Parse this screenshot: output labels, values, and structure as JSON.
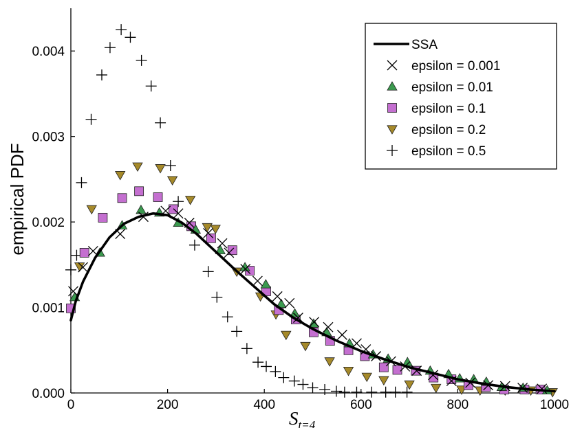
{
  "chart_data": {
    "type": "scatter",
    "title": "",
    "xlabel": "S",
    "xlabel_subscript": "t=4",
    "ylabel": "empirical PDF",
    "xlim": [
      0,
      1000
    ],
    "ylim": [
      0,
      0.0045
    ],
    "xticks": [
      0,
      200,
      400,
      600,
      800,
      1000
    ],
    "xtick_labels": [
      "0",
      "200",
      "400",
      "600",
      "800",
      "1000"
    ],
    "yticks": [
      0,
      0.001,
      0.002,
      0.003,
      0.004
    ],
    "ytick_labels": [
      "0.000",
      "0.001",
      "0.002",
      "0.003",
      "0.004"
    ],
    "grid": false,
    "legend_position": "top-right",
    "series": [
      {
        "name": "SSA",
        "marker": "line",
        "color": "#000000",
        "points": [
          [
            0,
            0.00085
          ],
          [
            10,
            0.00107
          ],
          [
            25,
            0.0013
          ],
          [
            50,
            0.00158
          ],
          [
            80,
            0.00182
          ],
          [
            110,
            0.00198
          ],
          [
            140,
            0.00206
          ],
          [
            170,
            0.0021
          ],
          [
            200,
            0.00208
          ],
          [
            230,
            0.00199
          ],
          [
            260,
            0.00186
          ],
          [
            300,
            0.00165
          ],
          [
            340,
            0.00144
          ],
          [
            380,
            0.00124
          ],
          [
            420,
            0.00104
          ],
          [
            460,
            0.00088
          ],
          [
            500,
            0.00075
          ],
          [
            550,
            0.00061
          ],
          [
            600,
            0.00049
          ],
          [
            650,
            0.00039
          ],
          [
            700,
            0.0003
          ],
          [
            750,
            0.00023
          ],
          [
            800,
            0.00016
          ],
          [
            850,
            0.00011
          ],
          [
            900,
            7e-05
          ],
          [
            950,
            4e-05
          ],
          [
            1000,
            2e-05
          ]
        ]
      },
      {
        "name": "epsilon = 0.001",
        "marker": "x",
        "color": "#000000",
        "points": [
          [
            5,
            0.00119
          ],
          [
            25,
            0.00147
          ],
          [
            46,
            0.00166
          ],
          [
            102,
            0.00186
          ],
          [
            150,
            0.00206
          ],
          [
            196,
            0.00213
          ],
          [
            222,
            0.0021
          ],
          [
            245,
            0.00199
          ],
          [
            284,
            0.00187
          ],
          [
            313,
            0.00175
          ],
          [
            327,
            0.00164
          ],
          [
            361,
            0.00145
          ],
          [
            386,
            0.00131
          ],
          [
            427,
            0.00113
          ],
          [
            452,
            0.00105
          ],
          [
            470,
            0.00088
          ],
          [
            503,
            0.00083
          ],
          [
            532,
            0.00077
          ],
          [
            561,
            0.00068
          ],
          [
            591,
            0.00058
          ],
          [
            610,
            0.00051
          ],
          [
            631,
            0.00043
          ],
          [
            662,
            0.00037
          ],
          [
            691,
            0.00031
          ],
          [
            715,
            0.00026
          ],
          [
            749,
            0.00021
          ],
          [
            787,
            0.00014
          ],
          [
            826,
            0.00012
          ],
          [
            863,
            9e-05
          ],
          [
            898,
            8e-05
          ],
          [
            934,
            6e-05
          ],
          [
            974,
            5e-05
          ]
        ]
      },
      {
        "name": "epsilon = 0.01",
        "marker": "triangle-up",
        "color": "#3b9a4f",
        "points": [
          [
            8,
            0.00112
          ],
          [
            60,
            0.00164
          ],
          [
            106,
            0.00196
          ],
          [
            145,
            0.00214
          ],
          [
            183,
            0.00211
          ],
          [
            222,
            0.00199
          ],
          [
            258,
            0.00191
          ],
          [
            309,
            0.00167
          ],
          [
            360,
            0.00147
          ],
          [
            403,
            0.00127
          ],
          [
            435,
            0.00104
          ],
          [
            463,
            0.00093
          ],
          [
            502,
            0.00081
          ],
          [
            529,
            0.00071
          ],
          [
            576,
            0.00058
          ],
          [
            625,
            0.00045
          ],
          [
            656,
            0.0004
          ],
          [
            696,
            0.00036
          ],
          [
            743,
            0.00026
          ],
          [
            781,
            0.00022
          ],
          [
            804,
            0.00017
          ],
          [
            833,
            0.00016
          ],
          [
            859,
            0.00013
          ],
          [
            891,
            7e-05
          ],
          [
            935,
            6e-05
          ],
          [
            985,
            3e-05
          ]
        ]
      },
      {
        "name": "epsilon = 0.1",
        "marker": "square",
        "color": "#c46fd0",
        "points": [
          [
            0,
            0.00099
          ],
          [
            28,
            0.00164
          ],
          [
            66,
            0.00205
          ],
          [
            106,
            0.00228
          ],
          [
            141,
            0.00236
          ],
          [
            180,
            0.00229
          ],
          [
            212,
            0.00215
          ],
          [
            249,
            0.00195
          ],
          [
            290,
            0.00181
          ],
          [
            334,
            0.00167
          ],
          [
            370,
            0.00143
          ],
          [
            404,
            0.00119
          ],
          [
            430,
            0.00097
          ],
          [
            465,
            0.00086
          ],
          [
            502,
            0.00071
          ],
          [
            536,
            0.00061
          ],
          [
            574,
            0.0005
          ],
          [
            608,
            0.00043
          ],
          [
            647,
            0.0003
          ],
          [
            675,
            0.00027
          ],
          [
            713,
            0.00026
          ],
          [
            750,
            0.00018
          ],
          [
            787,
            0.00016
          ],
          [
            822,
            9e-05
          ],
          [
            858,
            7e-05
          ],
          [
            896,
            4e-05
          ],
          [
            938,
            4e-05
          ],
          [
            971,
            4e-05
          ]
        ]
      },
      {
        "name": "epsilon = 0.2",
        "marker": "triangle-down",
        "color": "#a68a2a",
        "points": [
          [
            18,
            0.00148
          ],
          [
            43,
            0.00215
          ],
          [
            102,
            0.00255
          ],
          [
            138,
            0.00265
          ],
          [
            185,
            0.00263
          ],
          [
            210,
            0.00249
          ],
          [
            247,
            0.00226
          ],
          [
            282,
            0.00194
          ],
          [
            299,
            0.00192
          ],
          [
            343,
            0.00142
          ],
          [
            392,
            0.00113
          ],
          [
            424,
            0.00092
          ],
          [
            445,
            0.00068
          ],
          [
            485,
            0.00055
          ],
          [
            535,
            0.00037
          ],
          [
            574,
            0.00026
          ],
          [
            612,
            0.00019
          ],
          [
            647,
            0.00015
          ],
          [
            700,
            0.0001
          ],
          [
            755,
            6e-05
          ],
          [
            808,
            4e-05
          ],
          [
            846,
            3e-05
          ],
          [
            898,
            3e-05
          ],
          [
            951,
            3e-05
          ],
          [
            996,
            1e-05
          ]
        ]
      },
      {
        "name": "epsilon = 0.5",
        "marker": "plus",
        "color": "#000000",
        "points": [
          [
            0,
            0.00144
          ],
          [
            12,
            0.00161
          ],
          [
            22,
            0.00246
          ],
          [
            42,
            0.0032
          ],
          [
            64,
            0.00372
          ],
          [
            81,
            0.00404
          ],
          [
            104,
            0.00425
          ],
          [
            123,
            0.00416
          ],
          [
            146,
            0.00389
          ],
          [
            166,
            0.00359
          ],
          [
            185,
            0.00316
          ],
          [
            206,
            0.00266
          ],
          [
            222,
            0.00224
          ],
          [
            256,
            0.00173
          ],
          [
            284,
            0.00142
          ],
          [
            302,
            0.00112
          ],
          [
            324,
            0.00089
          ],
          [
            343,
            0.00072
          ],
          [
            364,
            0.00052
          ],
          [
            387,
            0.00036
          ],
          [
            404,
            0.00031
          ],
          [
            423,
            0.00025
          ],
          [
            440,
            0.00018
          ],
          [
            462,
            0.00014
          ],
          [
            480,
            0.0001
          ],
          [
            500,
            6e-05
          ],
          [
            525,
            4e-05
          ],
          [
            549,
            2e-05
          ],
          [
            566,
            1e-05
          ],
          [
            591,
            1e-05
          ],
          [
            622,
            1e-05
          ],
          [
            651,
            1e-05
          ],
          [
            671,
            1e-05
          ],
          [
            695,
            1e-05
          ]
        ]
      }
    ]
  }
}
